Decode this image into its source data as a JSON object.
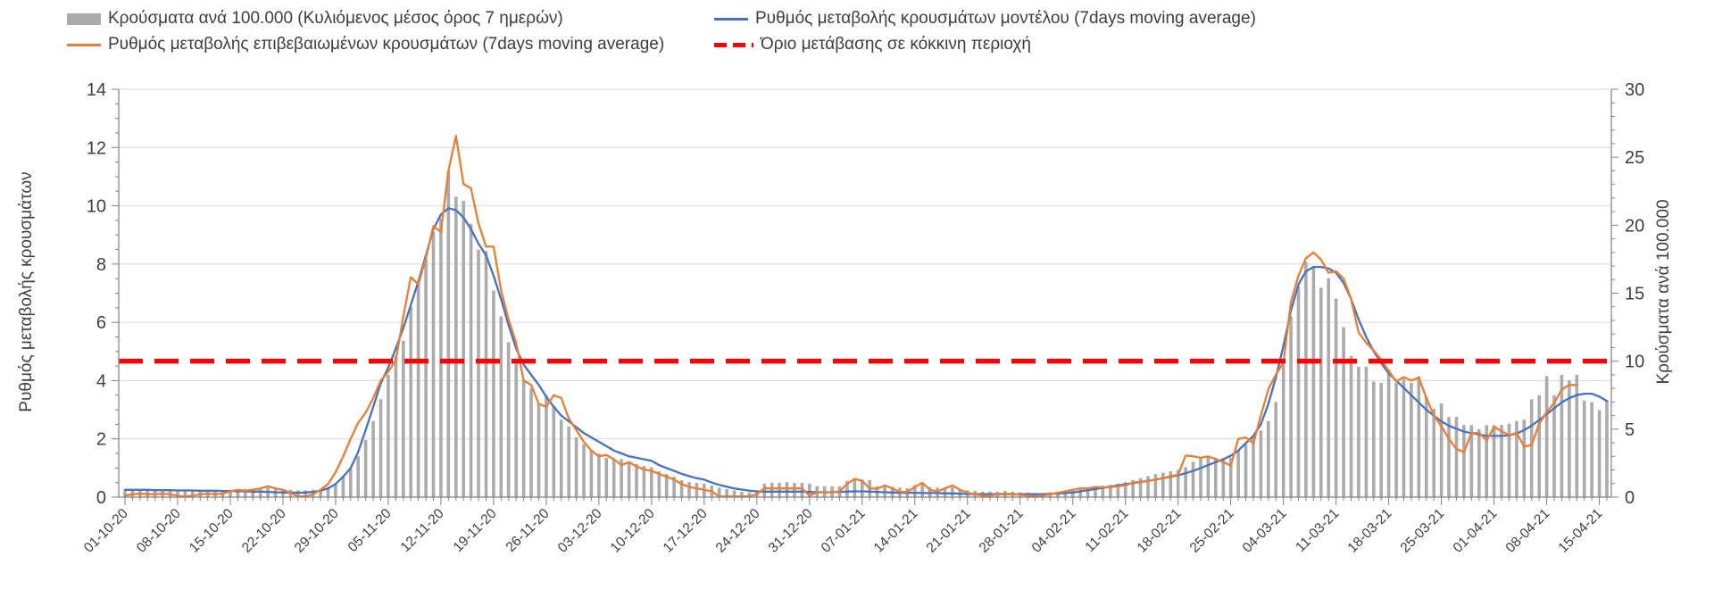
{
  "legend": {
    "items": [
      {
        "id": "cases-bars",
        "label": "Κρούσματα ανά 100.000 (Κυλιόμενος μέσος όρος 7 ημερών)",
        "marker": "bar",
        "color": "#ABABAB"
      },
      {
        "id": "confirmed-rate",
        "label": "Ρυθμός μεταβολής επιβεβαιωμένων κρουσμάτων (7days moving average)",
        "marker": "line",
        "color": "#ED7D31"
      },
      {
        "id": "model-rate",
        "label": "Ρυθμός μεταβολής κρουσμάτων μοντέλου (7days moving average)",
        "marker": "line",
        "color": "#4472C4"
      },
      {
        "id": "red-threshold",
        "label": "Όριο μετάβασης σε κόκκινη περιοχή",
        "marker": "dashed-line",
        "color": "#FE0000"
      }
    ]
  },
  "axes": {
    "left": {
      "title": "Ρυθμός μεταβολής κρουσμάτων"
    },
    "right": {
      "title": "Κρούσματα ανά 100.000"
    }
  },
  "chart_data": {
    "type": "combo",
    "title": "",
    "days": 198,
    "start_date": "01-10-20",
    "x_tick_interval_days": 7,
    "grid": true,
    "legend_position": "top",
    "x_labels": [
      "01-10-20",
      "08-10-20",
      "15-10-20",
      "22-10-20",
      "29-10-20",
      "05-11-20",
      "12-11-20",
      "19-11-20",
      "26-11-20",
      "03-12-20",
      "10-12-20",
      "17-12-20",
      "24-12-20",
      "31-12-20",
      "07-01-21",
      "14-01-21",
      "21-01-21",
      "28-01-21",
      "04-02-21",
      "11-02-21",
      "18-02-21",
      "25-02-21",
      "04-03-21",
      "11-03-21",
      "18-03-21",
      "25-03-21",
      "01-04-21",
      "08-04-21",
      "15-04-21"
    ],
    "left_axis": {
      "min": 0,
      "max": 14,
      "tick_step": 2,
      "minor_step": 0.5
    },
    "right_axis": {
      "min": 0,
      "max": 30,
      "tick_step": 5,
      "minor_step": 1
    },
    "threshold": {
      "label": "Όριο μετάβασης σε κόκκινη περιοχή",
      "value_right_axis": 10,
      "color": "#FE0000"
    },
    "series": [
      {
        "id": "cases-per-100k",
        "name": "Κρούσματα ανά 100.000 (Κυλιόμενος μέσος όρος 7 ημερών)",
        "type": "bar",
        "axis": "right",
        "color": "#ABABAB",
        "values": [
          0.5,
          0.5,
          0.5,
          0.5,
          0.55,
          0.5,
          0.45,
          0.45,
          0.45,
          0.5,
          0.5,
          0.5,
          0.45,
          0.5,
          0.55,
          0.6,
          0.6,
          0.6,
          0.65,
          0.7,
          0.65,
          0.6,
          0.55,
          0.5,
          0.5,
          0.55,
          0.6,
          0.75,
          1.0,
          1.5,
          2.1,
          3.0,
          4.2,
          5.6,
          7.2,
          9.0,
          10.4,
          11.5,
          14.0,
          15.7,
          17.5,
          19.5,
          20.5,
          24.0,
          22.1,
          21.8,
          20.1,
          18.2,
          18.1,
          15.2,
          13.3,
          11.4,
          10.0,
          8.6,
          8.0,
          6.9,
          7.5,
          6.7,
          5.7,
          5.2,
          4.4,
          3.9,
          3.5,
          3.2,
          2.9,
          2.8,
          2.8,
          2.5,
          2.45,
          2.3,
          2.2,
          1.9,
          1.7,
          1.5,
          1.25,
          1.1,
          1.05,
          1.0,
          0.85,
          0.7,
          0.6,
          0.5,
          0.4,
          0.35,
          0.4,
          1.0,
          1.05,
          1.05,
          1.1,
          1.05,
          1.05,
          1.0,
          0.8,
          0.8,
          0.8,
          0.8,
          1.2,
          1.35,
          1.3,
          1.25,
          0.8,
          0.8,
          0.75,
          0.7,
          0.65,
          0.9,
          1.0,
          0.75,
          0.7,
          0.7,
          0.75,
          0.6,
          0.5,
          0.45,
          0.4,
          0.4,
          0.4,
          0.45,
          0.4,
          0.35,
          0.35,
          0.3,
          0.3,
          0.35,
          0.4,
          0.5,
          0.6,
          0.65,
          0.7,
          0.8,
          0.85,
          0.9,
          1.0,
          1.1,
          1.25,
          1.4,
          1.55,
          1.7,
          1.8,
          1.9,
          2.0,
          2.2,
          2.6,
          2.9,
          3.0,
          2.9,
          2.85,
          2.9,
          3.4,
          3.9,
          4.4,
          4.9,
          5.6,
          7.0,
          9.8,
          13.3,
          15.5,
          17.3,
          16.9,
          15.4,
          16.1,
          14.6,
          12.5,
          10.4,
          9.6,
          9.6,
          8.5,
          8.4,
          9.4,
          8.4,
          8.7,
          8.4,
          8.9,
          7.4,
          6.5,
          6.9,
          5.9,
          5.9,
          5.3,
          5.3,
          5.0,
          5.3,
          5.3,
          5.3,
          5.4,
          5.6,
          5.7,
          7.2,
          7.5,
          8.9,
          7.5,
          9.0,
          8.6,
          9.0,
          7.1,
          7.0,
          6.4,
          7.1
        ]
      },
      {
        "id": "model-rate",
        "name": "Ρυθμός μεταβολής κρουσμάτων μοντέλου (7days moving average)",
        "type": "line",
        "axis": "left",
        "color": "#4472C4",
        "values": [
          0.25,
          0.25,
          0.25,
          0.25,
          0.24,
          0.24,
          0.24,
          0.23,
          0.23,
          0.23,
          0.22,
          0.22,
          0.22,
          0.21,
          0.21,
          0.2,
          0.2,
          0.19,
          0.19,
          0.18,
          0.17,
          0.16,
          0.16,
          0.15,
          0.16,
          0.18,
          0.22,
          0.3,
          0.45,
          0.7,
          1.0,
          1.55,
          2.3,
          3.1,
          3.9,
          4.45,
          5.1,
          5.8,
          6.6,
          7.4,
          8.3,
          9.2,
          9.7,
          9.92,
          9.85,
          9.6,
          9.2,
          8.7,
          8.3,
          7.6,
          6.8,
          5.9,
          5.1,
          4.55,
          4.2,
          3.85,
          3.45,
          3.1,
          2.8,
          2.6,
          2.4,
          2.2,
          2.05,
          1.9,
          1.75,
          1.6,
          1.5,
          1.4,
          1.35,
          1.3,
          1.25,
          1.1,
          1.0,
          0.9,
          0.8,
          0.72,
          0.65,
          0.6,
          0.5,
          0.42,
          0.36,
          0.3,
          0.26,
          0.22,
          0.2,
          0.19,
          0.19,
          0.19,
          0.19,
          0.19,
          0.19,
          0.18,
          0.17,
          0.17,
          0.17,
          0.18,
          0.19,
          0.2,
          0.2,
          0.19,
          0.18,
          0.17,
          0.16,
          0.15,
          0.15,
          0.15,
          0.14,
          0.14,
          0.14,
          0.13,
          0.13,
          0.12,
          0.11,
          0.1,
          0.1,
          0.1,
          0.1,
          0.1,
          0.1,
          0.1,
          0.1,
          0.1,
          0.1,
          0.11,
          0.12,
          0.14,
          0.16,
          0.2,
          0.24,
          0.28,
          0.32,
          0.36,
          0.4,
          0.44,
          0.48,
          0.52,
          0.56,
          0.6,
          0.65,
          0.7,
          0.75,
          0.82,
          0.9,
          1.0,
          1.1,
          1.2,
          1.3,
          1.42,
          1.6,
          1.85,
          2.1,
          2.5,
          3.2,
          4.1,
          5.2,
          6.4,
          7.3,
          7.75,
          7.9,
          7.9,
          7.85,
          7.7,
          7.35,
          6.8,
          6.1,
          5.5,
          5.0,
          4.6,
          4.25,
          4.0,
          3.75,
          3.5,
          3.25,
          3.0,
          2.8,
          2.6,
          2.45,
          2.35,
          2.25,
          2.2,
          2.15,
          2.1,
          2.1,
          2.1,
          2.12,
          2.18,
          2.3,
          2.45,
          2.65,
          2.85,
          3.05,
          3.25,
          3.4,
          3.5,
          3.55,
          3.55,
          3.45,
          3.3
        ]
      },
      {
        "id": "confirmed-rate",
        "name": "Ρυθμός μεταβολής επιβεβαιωμένων κρουσμάτων (7days moving average)",
        "type": "line",
        "axis": "left",
        "color": "#ED7D31",
        "values": [
          0.05,
          0.1,
          0.12,
          0.1,
          0.1,
          0.12,
          0.1,
          0.05,
          0.02,
          0.05,
          0.1,
          0.12,
          0.1,
          0.12,
          0.2,
          0.25,
          0.22,
          0.25,
          0.3,
          0.37,
          0.3,
          0.25,
          0.15,
          0.02,
          0.02,
          0.1,
          0.25,
          0.45,
          0.85,
          1.4,
          2.0,
          2.55,
          2.9,
          3.4,
          4.0,
          4.3,
          4.7,
          6.2,
          7.55,
          7.3,
          8.2,
          9.3,
          9.1,
          11.2,
          12.4,
          10.75,
          10.6,
          9.4,
          8.6,
          8.6,
          7.1,
          6.1,
          5.3,
          4.0,
          3.85,
          3.2,
          3.1,
          3.5,
          3.4,
          2.7,
          2.3,
          1.9,
          1.6,
          1.4,
          1.45,
          1.3,
          1.1,
          1.2,
          1.05,
          0.95,
          0.9,
          0.8,
          0.7,
          0.6,
          0.45,
          0.35,
          0.3,
          0.25,
          0.2,
          0.02,
          0.02,
          0.02,
          0.02,
          0.02,
          0.1,
          0.3,
          0.3,
          0.3,
          0.3,
          0.3,
          0.3,
          0.05,
          0.17,
          0.17,
          0.17,
          0.2,
          0.45,
          0.63,
          0.55,
          0.3,
          0.29,
          0.4,
          0.3,
          0.18,
          0.18,
          0.35,
          0.49,
          0.25,
          0.2,
          0.3,
          0.4,
          0.25,
          0.15,
          0.1,
          0.05,
          0.05,
          0.1,
          0.12,
          0.1,
          0.08,
          0.05,
          0.02,
          0.05,
          0.1,
          0.15,
          0.2,
          0.25,
          0.3,
          0.3,
          0.35,
          0.33,
          0.35,
          0.37,
          0.4,
          0.5,
          0.52,
          0.55,
          0.6,
          0.65,
          0.72,
          0.77,
          1.43,
          1.4,
          1.35,
          1.4,
          1.3,
          1.2,
          1.08,
          2.0,
          2.05,
          1.85,
          2.8,
          3.7,
          4.2,
          4.63,
          6.7,
          7.6,
          8.2,
          8.4,
          8.15,
          7.7,
          7.75,
          7.5,
          6.8,
          5.65,
          5.3,
          5.03,
          4.73,
          4.33,
          3.97,
          4.12,
          4.0,
          4.1,
          3.41,
          2.8,
          2.44,
          2.0,
          1.65,
          1.55,
          2.2,
          2.2,
          1.95,
          2.41,
          2.26,
          2.13,
          2.2,
          1.74,
          1.79,
          2.52,
          2.92,
          3.23,
          3.69,
          3.85,
          3.85,
          null,
          null,
          null,
          null
        ]
      }
    ]
  }
}
